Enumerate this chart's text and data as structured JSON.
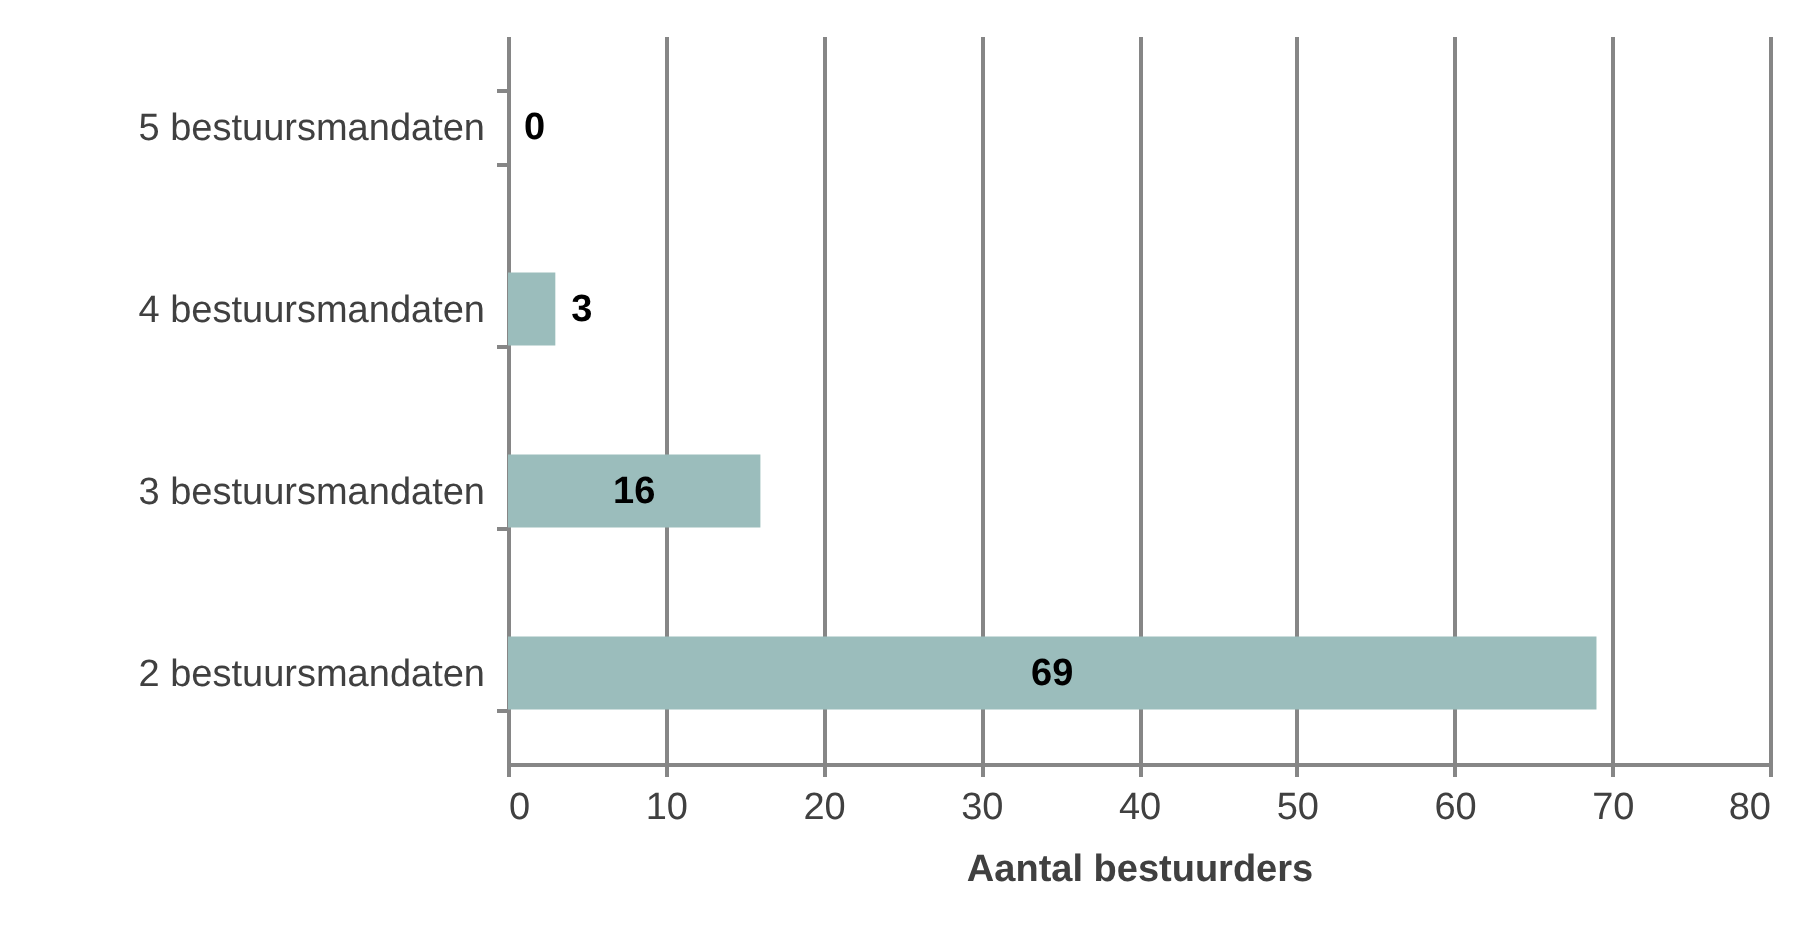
{
  "chart_data": {
    "type": "bar",
    "orientation": "horizontal",
    "xlabel": "Aantal bestuurders",
    "categories": [
      "5 bestuursmandaten",
      "4 bestuursmandaten",
      "3 bestuursmandaten",
      "2 bestuursmandaten"
    ],
    "values": [
      0,
      3,
      16,
      69
    ],
    "color": "#9bbdbc",
    "xlim": [
      0,
      80
    ],
    "xticks": [
      0,
      10,
      20,
      30,
      40,
      50,
      60,
      70,
      80
    ],
    "grid": "x",
    "data_labels": true
  }
}
